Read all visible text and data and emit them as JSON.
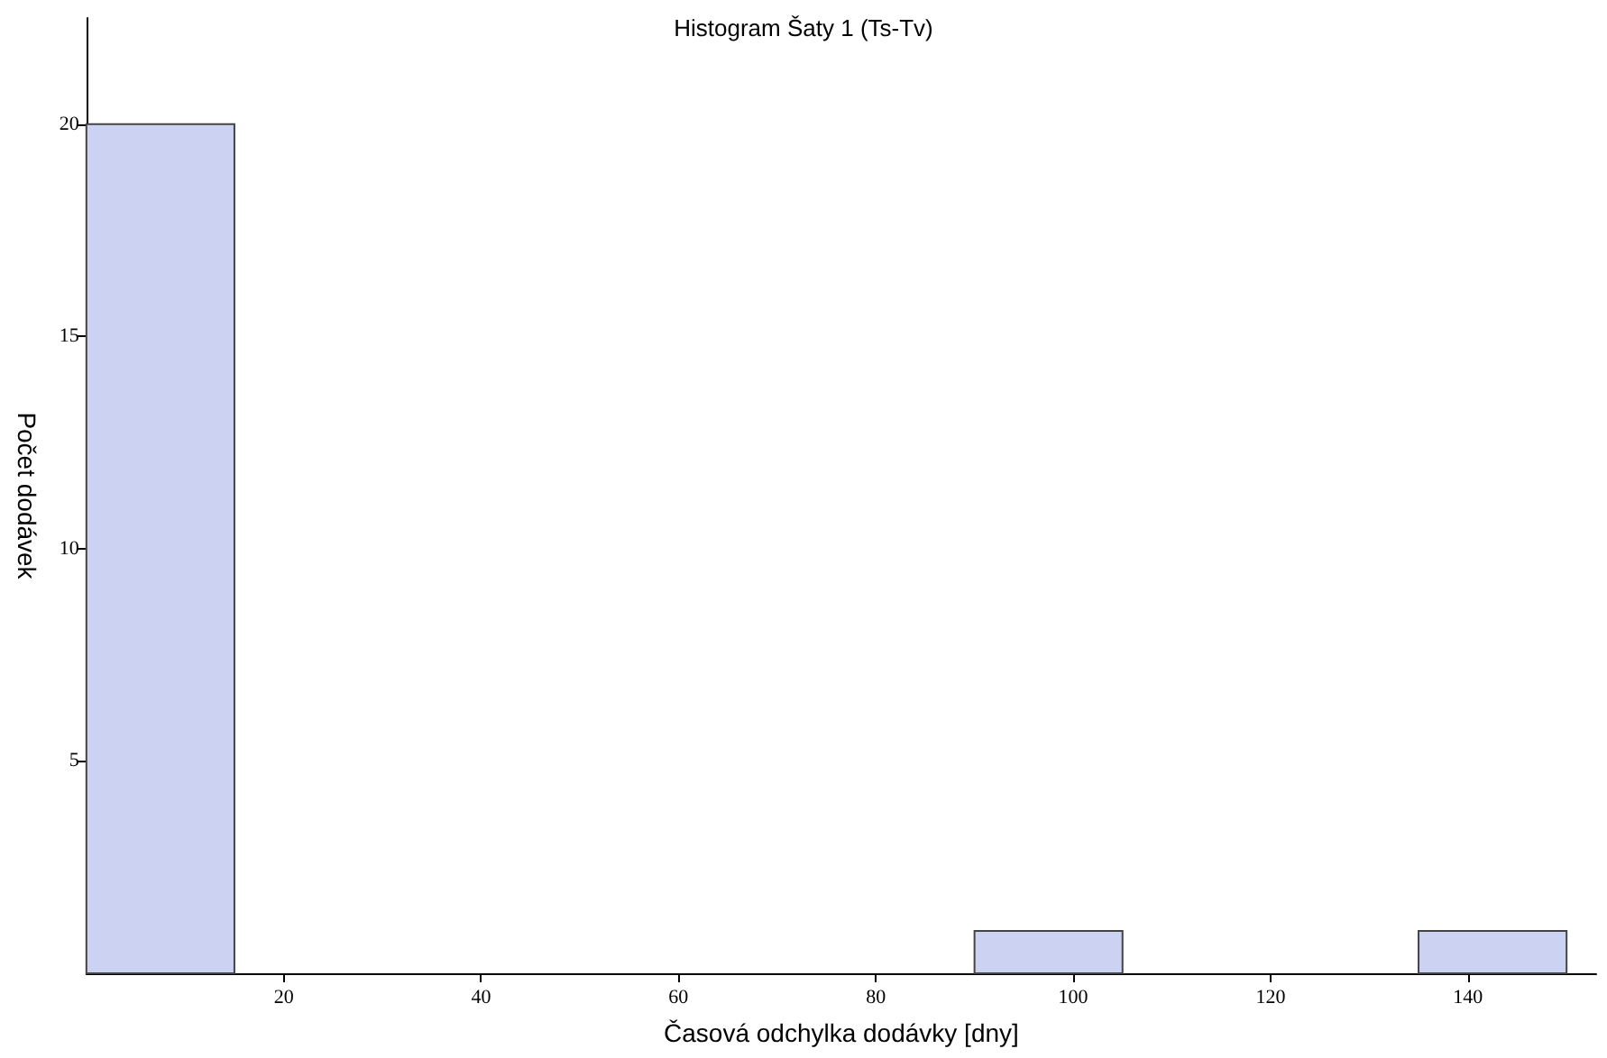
{
  "chart_data": {
    "type": "histogram",
    "title": "Histogram Šaty 1 (Ts-Tv)",
    "xlabel": "Časová odchylka dodávky [dny]",
    "ylabel": "Počet dodávek",
    "bins": [
      0,
      15,
      30,
      45,
      60,
      75,
      90,
      105,
      120,
      135,
      150
    ],
    "values": [
      20,
      0,
      0,
      0,
      0,
      0,
      1,
      0,
      0,
      1
    ],
    "color": "#ccd3f2",
    "xlim": [
      0,
      153
    ],
    "xticks": [
      20,
      40,
      60,
      80,
      100,
      120,
      140
    ],
    "ylim": [
      0,
      22.5
    ],
    "yticks": [
      5,
      10,
      15,
      20
    ],
    "grid": false
  }
}
